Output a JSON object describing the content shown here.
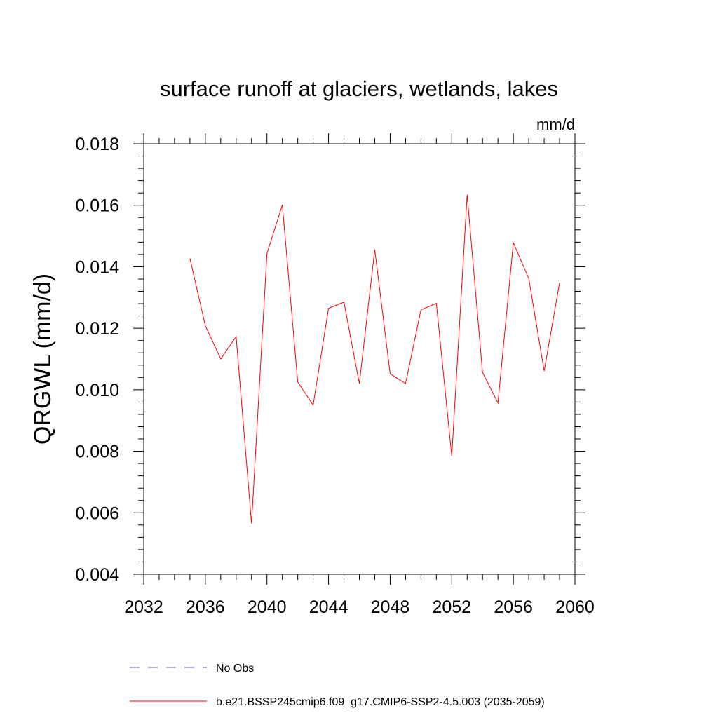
{
  "chart_data": {
    "type": "line",
    "title": "surface runoff at glaciers, wetlands, lakes",
    "units": "mm/d",
    "ylabel": "QRGWL  (mm/d)",
    "xlabel": "",
    "xlim": [
      2032,
      2060
    ],
    "ylim": [
      0.004,
      0.018
    ],
    "x_ticks": [
      "2032",
      "2036",
      "2040",
      "2044",
      "2048",
      "2052",
      "2056",
      "2060"
    ],
    "y_ticks": [
      "0.004",
      "0.006",
      "0.008",
      "0.010",
      "0.012",
      "0.014",
      "0.016",
      "0.018"
    ],
    "grid": false,
    "legend_position": "bottom",
    "x": [
      2035,
      2036,
      2037,
      2038,
      2039,
      2040,
      2041,
      2042,
      2043,
      2044,
      2045,
      2046,
      2047,
      2048,
      2049,
      2050,
      2051,
      2052,
      2053,
      2054,
      2055,
      2056,
      2057,
      2058,
      2059
    ],
    "series": [
      {
        "name": "b.e21.BSSP245cmip6.f09_g17.CMIP6-SSP2-4.5.003 (2035-2059)",
        "color": "#ff0000",
        "style": "solid",
        "values": [
          0.01427,
          0.01208,
          0.011,
          0.01173,
          0.00565,
          0.01443,
          0.01601,
          0.01025,
          0.0095,
          0.01265,
          0.01285,
          0.0102,
          0.01456,
          0.01052,
          0.0102,
          0.0126,
          0.01281,
          0.00784,
          0.01634,
          0.01056,
          0.00957,
          0.01478,
          0.01362,
          0.01061,
          0.01348
        ]
      }
    ],
    "legend": [
      {
        "label": "No Obs",
        "color": "#6a5acd",
        "style": "dashed"
      },
      {
        "label": "b.e21.BSSP245cmip6.f09_g17.CMIP6-SSP2-4.5.003 (2035-2059)",
        "color": "#ff0000",
        "style": "solid"
      }
    ]
  }
}
